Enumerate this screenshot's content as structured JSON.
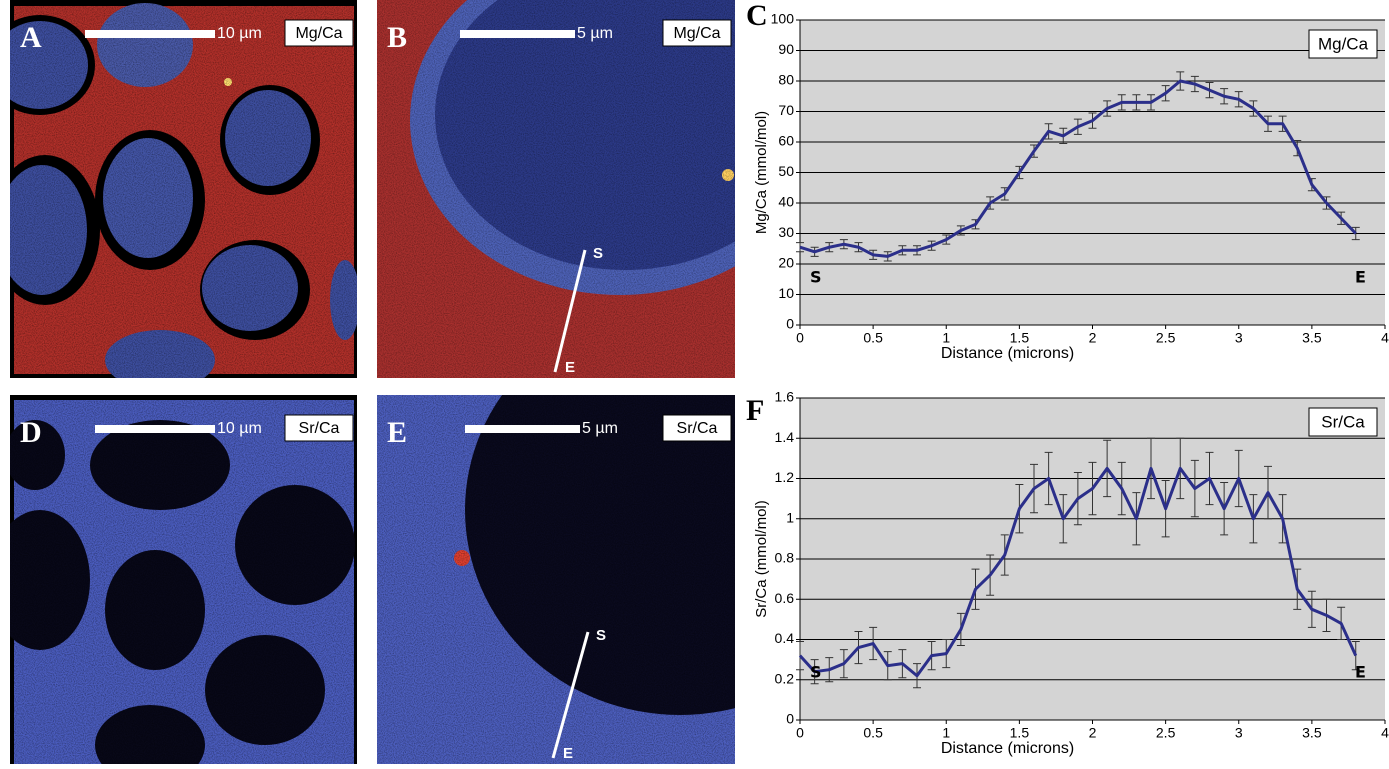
{
  "panels": [
    {
      "label": "A",
      "scale": "10 µm",
      "element": "Mg/Ca"
    },
    {
      "label": "B",
      "scale": "5 µm",
      "element": "Mg/Ca",
      "start": "S",
      "end": "E"
    },
    {
      "label": "D",
      "scale": "10 µm",
      "element": "Sr/Ca"
    },
    {
      "label": "E",
      "scale": "5 µm",
      "element": "Sr/Ca",
      "start": "S",
      "end": "E"
    }
  ],
  "chart_data": [
    {
      "type": "line",
      "title": "C",
      "x_label": "Distance (microns)",
      "y_label": "Mg/Ca (mmol/mol)",
      "x": [
        0,
        0.1,
        0.2,
        0.3,
        0.4,
        0.5,
        0.6,
        0.7,
        0.8,
        0.9,
        1.0,
        1.1,
        1.2,
        1.3,
        1.4,
        1.5,
        1.6,
        1.7,
        1.8,
        1.9,
        2.0,
        2.1,
        2.2,
        2.3,
        2.4,
        2.5,
        2.6,
        2.7,
        2.8,
        2.9,
        3.0,
        3.1,
        3.2,
        3.3,
        3.4,
        3.5,
        3.6,
        3.7,
        3.8
      ],
      "series": [
        {
          "name": "Mg/Ca",
          "color": "#2b2f8a",
          "values": [
            25.5,
            24,
            25.5,
            26.5,
            25.5,
            23,
            22.5,
            24.5,
            24.5,
            26,
            28,
            31,
            33,
            40,
            43,
            50,
            57,
            63.5,
            62,
            65,
            67,
            71,
            73,
            73,
            73,
            76,
            80,
            79,
            77,
            75,
            74,
            71,
            66,
            66,
            58,
            46,
            40,
            35,
            30
          ],
          "errors": [
            1.5,
            1.5,
            1.5,
            1.5,
            1.5,
            1.5,
            1.5,
            1.5,
            1.5,
            1.5,
            1.5,
            1.5,
            1.5,
            2,
            2,
            2,
            2,
            2.5,
            2.5,
            2.5,
            2.5,
            2.5,
            2.5,
            2.5,
            2.5,
            2.5,
            3,
            2.5,
            2.5,
            2.5,
            2.5,
            2.5,
            2.5,
            2.5,
            2.5,
            2,
            2,
            2,
            2
          ]
        }
      ],
      "xlim": [
        0,
        4
      ],
      "ylim": [
        0,
        100
      ],
      "xticks": [
        0,
        0.5,
        1,
        1.5,
        2,
        2.5,
        3,
        3.5,
        4
      ],
      "yticks": [
        0,
        10,
        20,
        30,
        40,
        50,
        60,
        70,
        80,
        90,
        100
      ],
      "grid": true,
      "legend": "upper right",
      "annotations": [
        "S",
        "E"
      ]
    },
    {
      "type": "line",
      "title": "F",
      "x_label": "Distance (microns)",
      "y_label": "Sr/Ca (mmol/mol)",
      "x": [
        0,
        0.1,
        0.2,
        0.3,
        0.4,
        0.5,
        0.6,
        0.7,
        0.8,
        0.9,
        1.0,
        1.1,
        1.2,
        1.3,
        1.4,
        1.5,
        1.6,
        1.7,
        1.8,
        1.9,
        2.0,
        2.1,
        2.2,
        2.3,
        2.4,
        2.5,
        2.6,
        2.7,
        2.8,
        2.9,
        3.0,
        3.1,
        3.2,
        3.3,
        3.4,
        3.5,
        3.6,
        3.7,
        3.8
      ],
      "series": [
        {
          "name": "Sr/Ca",
          "color": "#2b2f8a",
          "values": [
            0.32,
            0.24,
            0.25,
            0.28,
            0.36,
            0.38,
            0.27,
            0.28,
            0.22,
            0.32,
            0.33,
            0.45,
            0.65,
            0.72,
            0.82,
            1.05,
            1.15,
            1.2,
            1.0,
            1.1,
            1.15,
            1.25,
            1.15,
            1.0,
            1.25,
            1.05,
            1.25,
            1.15,
            1.2,
            1.05,
            1.2,
            1.0,
            1.13,
            1.0,
            0.65,
            0.55,
            0.52,
            0.48,
            0.32
          ],
          "errors": [
            0.07,
            0.06,
            0.06,
            0.07,
            0.08,
            0.08,
            0.07,
            0.07,
            0.06,
            0.07,
            0.07,
            0.08,
            0.1,
            0.1,
            0.1,
            0.12,
            0.12,
            0.13,
            0.12,
            0.13,
            0.13,
            0.14,
            0.13,
            0.13,
            0.15,
            0.14,
            0.15,
            0.14,
            0.13,
            0.13,
            0.14,
            0.12,
            0.13,
            0.12,
            0.1,
            0.09,
            0.08,
            0.08,
            0.07
          ]
        }
      ],
      "xlim": [
        0,
        4
      ],
      "ylim": [
        0,
        1.6
      ],
      "xticks": [
        0,
        0.5,
        1,
        1.5,
        2,
        2.5,
        3,
        3.5,
        4
      ],
      "yticks": [
        0,
        0.2,
        0.4,
        0.6,
        0.8,
        1,
        1.2,
        1.4,
        1.6
      ],
      "grid": true,
      "legend": "upper right",
      "annotations": [
        "S",
        "E"
      ]
    }
  ]
}
